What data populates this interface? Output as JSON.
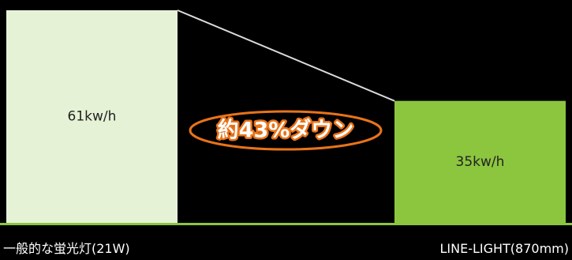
{
  "chart_data": {
    "type": "bar",
    "categories": [
      "一般的な蛍光灯(21W)",
      "LINE-LIGHT(870mm)"
    ],
    "values": [
      61,
      35
    ],
    "value_labels": [
      "61kw/h",
      "35kw/h"
    ],
    "ylim": [
      0,
      61
    ],
    "annotation": "約43%ダウン",
    "grid": false,
    "legend": "none",
    "colors": {
      "background": "#000000",
      "bar_1": "#e6f2d6",
      "bar_2": "#8cc63f",
      "connector": "#dcdcdc",
      "baseline": "#8cc63f",
      "badge_outline": "#e8731a",
      "badge_text": "#ffffff"
    }
  }
}
